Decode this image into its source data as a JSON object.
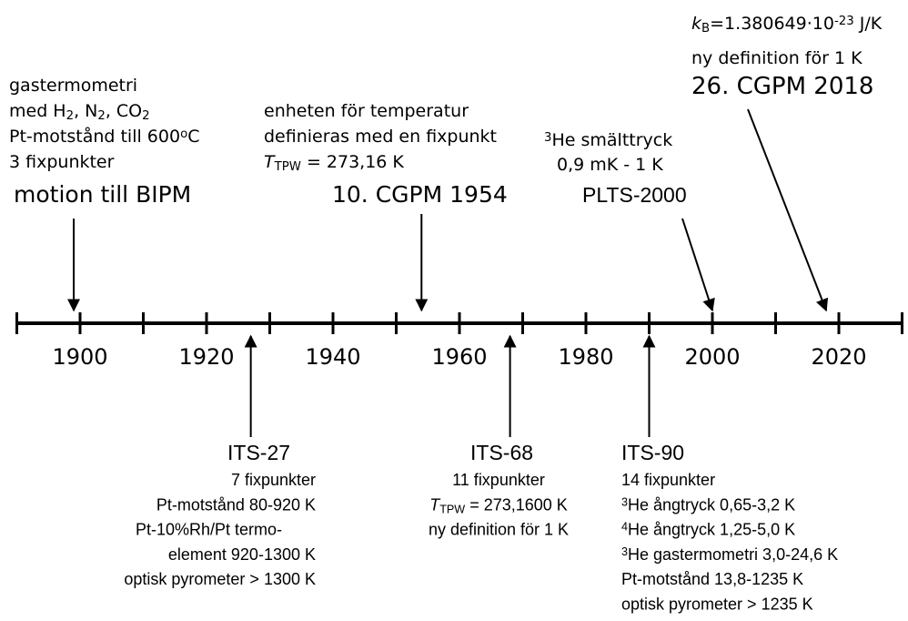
{
  "timeline": {
    "xlim": [
      1890,
      2030
    ],
    "ticks": [
      1890,
      1900,
      1910,
      1920,
      1930,
      1940,
      1950,
      1960,
      1970,
      1980,
      1990,
      2000,
      2010,
      2020,
      2030
    ],
    "labels": [
      1900,
      1920,
      1940,
      1960,
      1980,
      2000,
      2020
    ]
  },
  "events_above": [
    {
      "year": 1899,
      "title": "motion till BIPM",
      "lines": [
        [
          {
            "text": "gastermometri"
          }
        ],
        [
          {
            "text": "med H"
          },
          {
            "text": "2",
            "style": "sub"
          },
          {
            "text": ", N"
          },
          {
            "text": "2",
            "style": "sub"
          },
          {
            "text": ", CO"
          },
          {
            "text": "2",
            "style": "sub"
          }
        ],
        [
          {
            "text": "Pt-motstånd till 600"
          },
          {
            "text": "o",
            "style": "sup"
          },
          {
            "text": "C"
          }
        ],
        [
          {
            "text": "3 fixpunkter"
          }
        ]
      ]
    },
    {
      "year": 1954,
      "title": "10. CGPM 1954",
      "lines": [
        [
          {
            "text": "enheten för temperatur"
          }
        ],
        [
          {
            "text": "definieras med en fixpunkt"
          }
        ],
        [
          {
            "text": "T",
            "style": "italic"
          },
          {
            "text": "TPW",
            "style": "sub"
          },
          {
            "text": " = 273,16 K"
          }
        ]
      ]
    },
    {
      "year": 2000,
      "title": "PLTS-2000",
      "lines": [
        [
          {
            "text": "3",
            "style": "sup"
          },
          {
            "text": "He smälttryck"
          }
        ],
        [
          {
            "text": "0,9 mK - 1 K"
          }
        ]
      ]
    },
    {
      "year": 2018,
      "title": "26. CGPM 2018",
      "lines": [
        [
          {
            "text": "k",
            "style": "italic"
          },
          {
            "text": "B",
            "style": "sub"
          },
          {
            "text": "=1.380649"
          },
          {
            "text": "·"
          },
          {
            "text": "10"
          },
          {
            "text": "-23",
            "style": "sup"
          },
          {
            "text": " J/K"
          }
        ],
        [
          {
            "text": "ny definition för 1 K"
          }
        ]
      ]
    }
  ],
  "events_below": [
    {
      "year": 1927,
      "title": "ITS-27",
      "lines": [
        [
          {
            "text": "7 fixpunkter"
          }
        ],
        [
          {
            "text": "Pt-motstånd 80-920 K"
          }
        ],
        [
          {
            "text": "Pt-10%Rh/Pt termo-"
          }
        ],
        [
          {
            "text": "element 920-1300 K"
          }
        ],
        [
          {
            "text": "optisk pyrometer > 1300 K"
          }
        ]
      ]
    },
    {
      "year": 1968,
      "title": "ITS-68",
      "lines": [
        [
          {
            "text": "11 fixpunkter"
          }
        ],
        [
          {
            "text": "T",
            "style": "italic"
          },
          {
            "text": "TPW",
            "style": "sub"
          },
          {
            "text": " = 273,1600 K"
          }
        ],
        [
          {
            "text": "ny definition för 1 K"
          }
        ]
      ]
    },
    {
      "year": 1990,
      "title": "ITS-90",
      "lines": [
        [
          {
            "text": "14 fixpunkter"
          }
        ],
        [
          {
            "text": "3",
            "style": "sup"
          },
          {
            "text": "He ångtryck 0,65-3,2 K"
          }
        ],
        [
          {
            "text": "4",
            "style": "sup"
          },
          {
            "text": "He ångtryck 1,25-5,0 K"
          }
        ],
        [
          {
            "text": "3",
            "style": "sup"
          },
          {
            "text": "He gastermometri 3,0-24,6 K"
          }
        ],
        [
          {
            "text": "Pt-motstånd 13,8-1235 K"
          }
        ],
        [
          {
            "text": "optisk pyrometer > 1235 K"
          }
        ]
      ]
    }
  ]
}
